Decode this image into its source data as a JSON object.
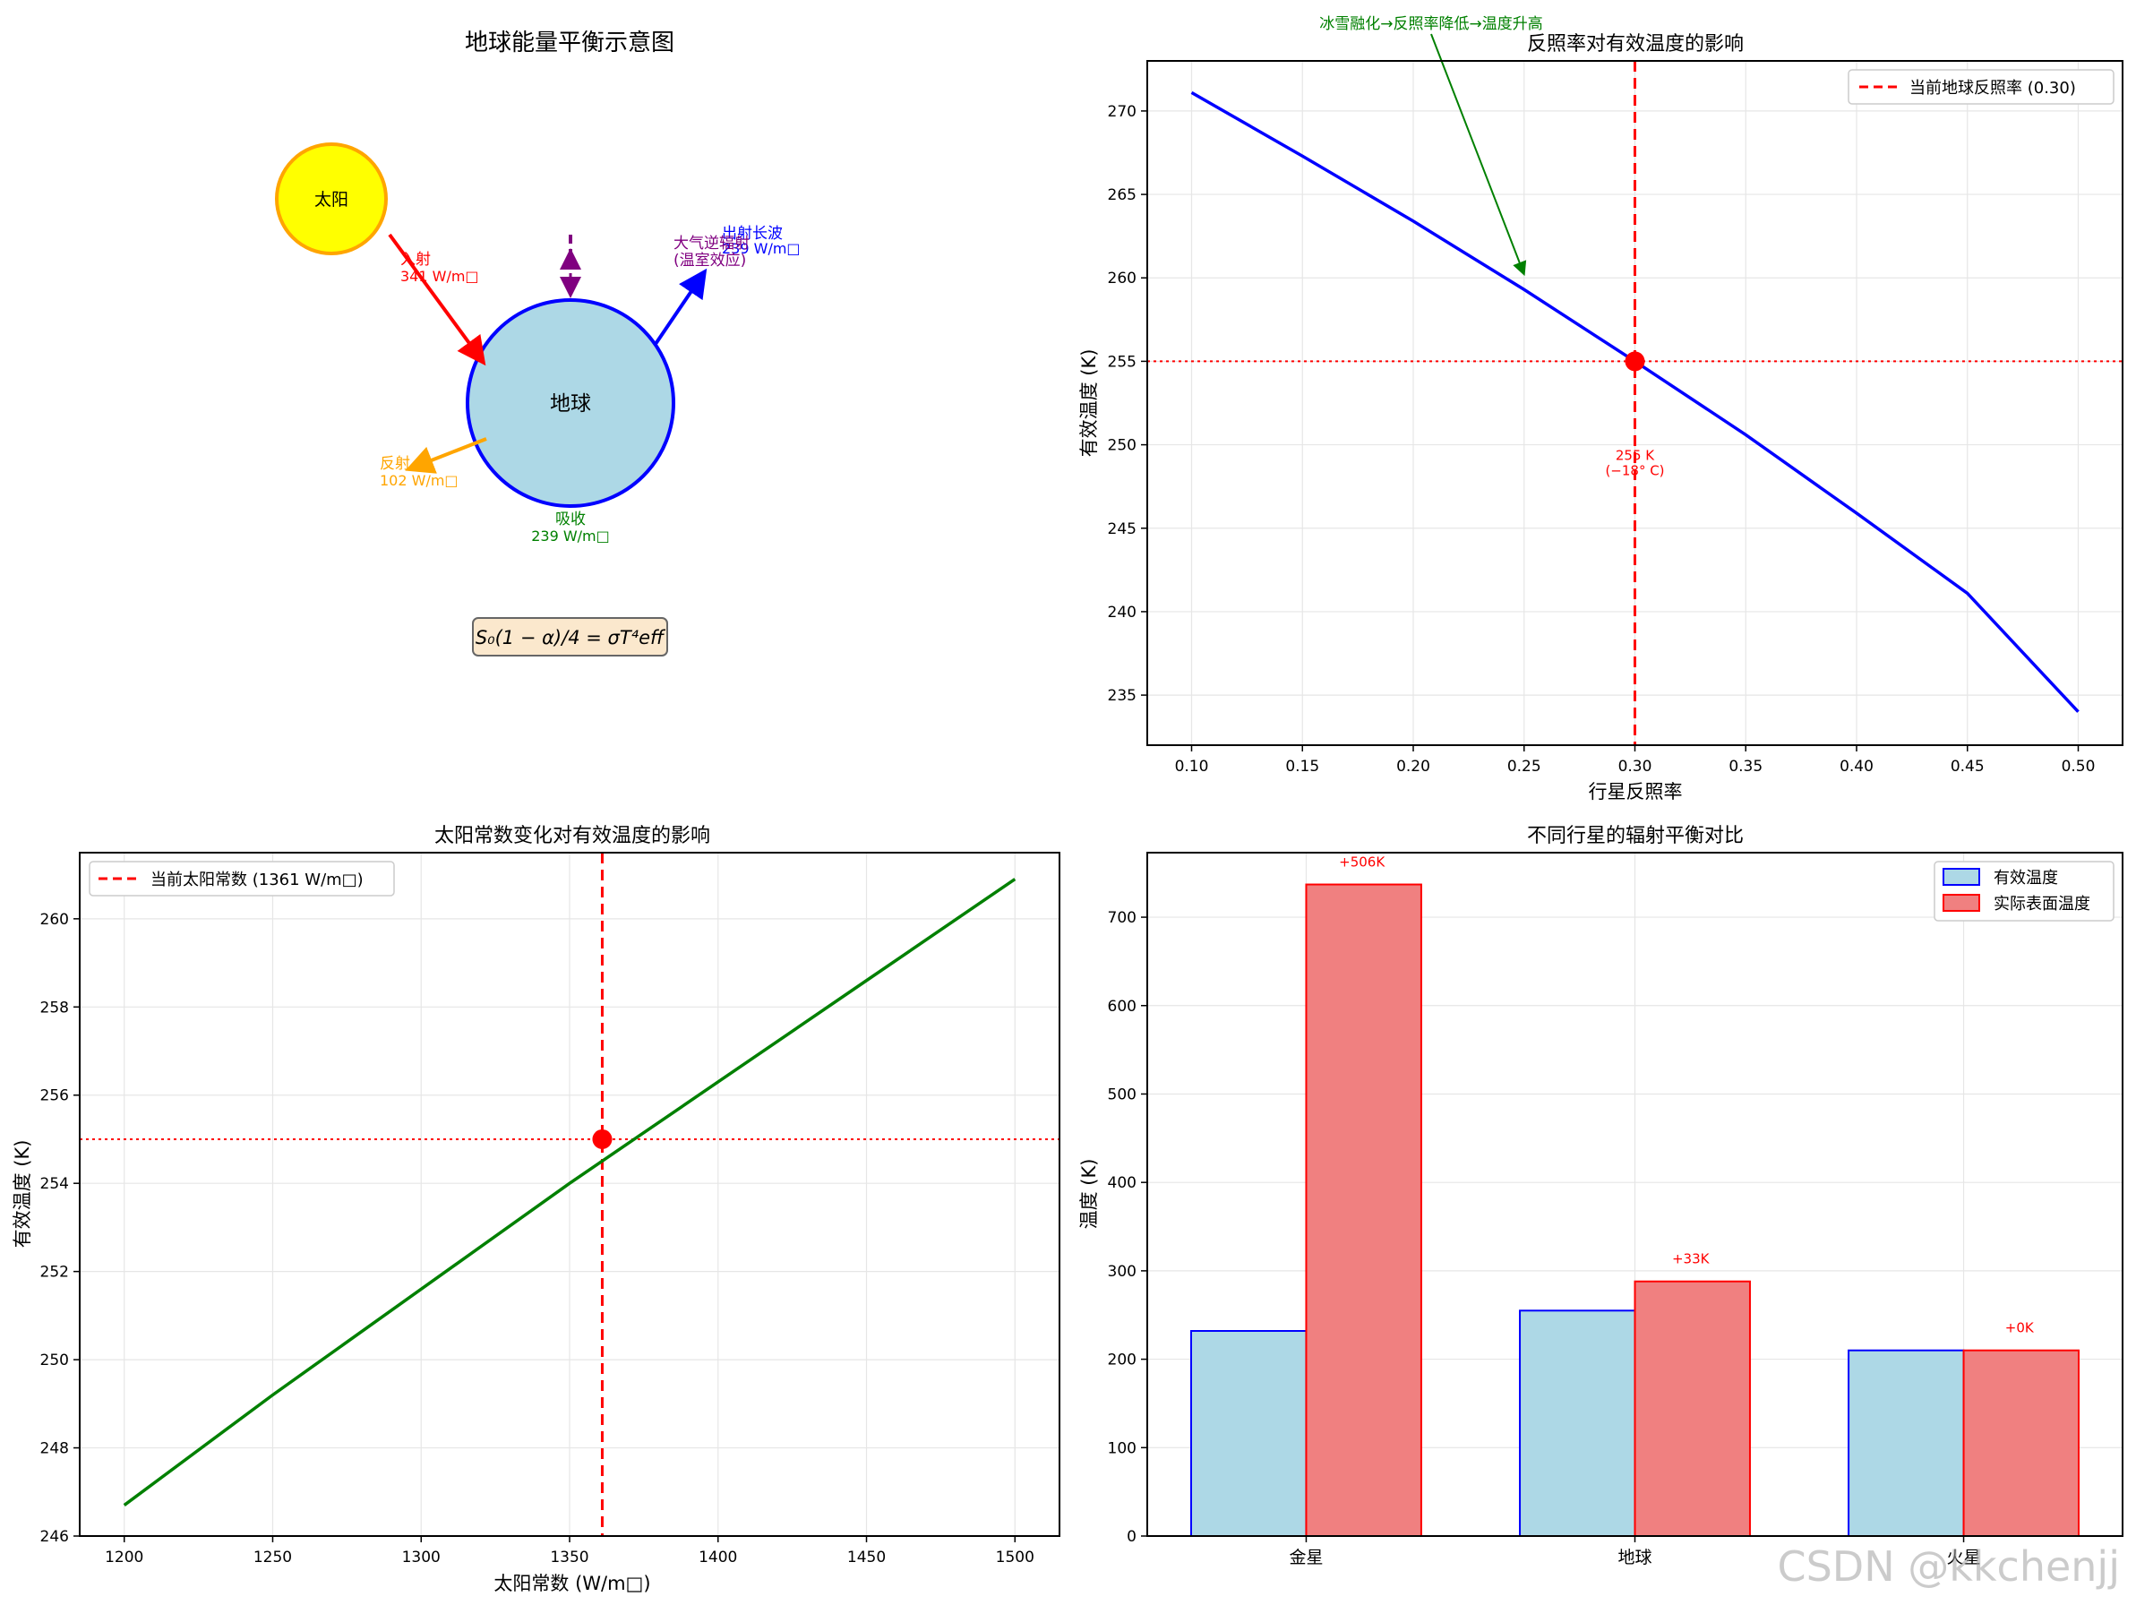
{
  "watermark": "CSDN @kkchenjj",
  "diagram": {
    "title": "地球能量平衡示意图",
    "sun_label": "太阳",
    "earth_label": "地球",
    "incoming_label": "入射",
    "incoming_value": "341 W/m□",
    "reflected_label": "反射",
    "reflected_value": "102 W/m□",
    "absorbed_label": "吸收",
    "absorbed_value": "239 W/m□",
    "outgoing_label": "出射长波",
    "outgoing_value": "239 W/m□",
    "backradiation_label": "大气逆辐射",
    "greenhouse_label": "(温室效应)",
    "formula": "S₀(1 − α)/4 = σT⁴eff",
    "colors": {
      "sun": "#ffff00",
      "sun_edge": "#ffa500",
      "earth": "#add8e6",
      "earth_edge": "#0000ff",
      "incoming": "#ff0000",
      "reflected": "#ffa500",
      "absorbed": "#008000",
      "outgoing": "#0000ff",
      "back": "#800080"
    }
  },
  "chart_data": [
    {
      "type": "line",
      "title": "反照率对有效温度的影响",
      "xlabel": "行星反照率",
      "ylabel": "有效温度 (K)",
      "x": [
        0.1,
        0.15,
        0.2,
        0.25,
        0.3,
        0.35,
        0.4,
        0.45,
        0.5
      ],
      "series": [
        {
          "values": [
            271.1,
            267.3,
            263.4,
            259.3,
            255.0,
            250.6,
            245.9,
            241.1,
            234.0
          ],
          "color": "#0000ff"
        }
      ],
      "xlim": [
        0.08,
        0.52
      ],
      "ylim": [
        232,
        273
      ],
      "xticks": [
        0.1,
        0.15,
        0.2,
        0.25,
        0.3,
        0.35,
        0.4,
        0.45,
        0.5
      ],
      "xtick_labels": [
        "0.10",
        "0.15",
        "0.20",
        "0.25",
        "0.30",
        "0.35",
        "0.40",
        "0.45",
        "0.50"
      ],
      "yticks": [
        235,
        240,
        245,
        250,
        255,
        260,
        265,
        270
      ],
      "vline": {
        "x": 0.3,
        "color": "#ff0000"
      },
      "hline": {
        "y": 255,
        "color": "#ff0000"
      },
      "point": {
        "x": 0.3,
        "y": 255
      },
      "point_label_1": "255 K",
      "point_label_2": "(−18° C)",
      "annotation": {
        "text": "冰雪融化→反照率降低→温度升高",
        "x": 0.25,
        "y": 260,
        "color": "#008000"
      },
      "legend": {
        "entries": [
          "当前地球反照率 (0.30)"
        ],
        "placement": "upper right"
      },
      "grid": true
    },
    {
      "type": "line",
      "title": "太阳常数变化对有效温度的影响",
      "xlabel": "太阳常数 (W/m□)",
      "ylabel": "有效温度 (K)",
      "x": [
        1200,
        1250,
        1300,
        1350,
        1400,
        1450,
        1500
      ],
      "series": [
        {
          "values": [
            246.7,
            249.2,
            251.6,
            254.0,
            256.3,
            258.6,
            260.9
          ],
          "color": "#008000"
        }
      ],
      "xlim": [
        1185,
        1515
      ],
      "ylim": [
        246,
        261.5
      ],
      "xticks": [
        1200,
        1250,
        1300,
        1350,
        1400,
        1450,
        1500
      ],
      "yticks": [
        246,
        248,
        250,
        252,
        254,
        256,
        258,
        260
      ],
      "vline": {
        "x": 1361,
        "color": "#ff0000"
      },
      "hline": {
        "y": 255,
        "color": "#ff0000"
      },
      "point": {
        "x": 1361,
        "y": 255
      },
      "legend": {
        "entries": [
          "当前太阳常数 (1361 W/m□)"
        ],
        "placement": "upper left"
      },
      "grid": true
    },
    {
      "type": "bar",
      "title": "不同行星的辐射平衡对比",
      "ylabel": "温度 (K)",
      "categories": [
        "金星",
        "地球",
        "火星"
      ],
      "series": [
        {
          "name": "有效温度",
          "values": [
            232,
            255,
            210
          ],
          "color": "#add8e6",
          "edge": "#0000ff"
        },
        {
          "name": "实际表面温度",
          "values": [
            737,
            288,
            210
          ],
          "color": "#f08080",
          "edge": "#ff0000"
        }
      ],
      "diff_labels": [
        "+506K",
        "+33K",
        "+0K"
      ],
      "ylim": [
        0,
        773
      ],
      "yticks": [
        0,
        100,
        200,
        300,
        400,
        500,
        600,
        700
      ],
      "legend": {
        "placement": "upper right"
      },
      "grid": true
    }
  ]
}
